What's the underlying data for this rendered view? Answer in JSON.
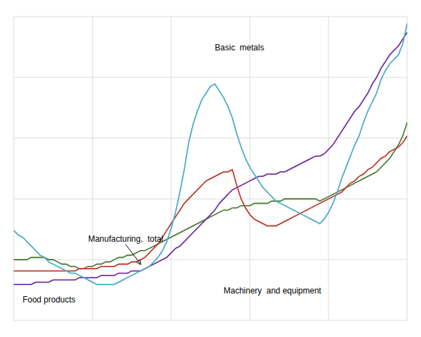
{
  "chart_data": {
    "type": "line",
    "x": [
      0,
      1,
      2,
      3,
      4,
      5,
      6,
      7,
      8,
      9,
      10,
      11,
      12,
      13,
      14,
      15,
      16,
      17,
      18,
      19,
      20,
      21,
      22,
      23,
      24,
      25,
      26,
      27,
      28,
      29,
      30,
      31,
      32,
      33,
      34,
      35,
      36,
      37,
      38,
      39,
      40,
      41,
      42,
      43,
      44,
      45,
      46,
      47,
      48,
      49,
      50,
      51,
      52,
      53,
      54,
      55,
      56,
      57,
      58,
      59,
      60,
      61,
      62,
      63,
      64,
      65,
      66,
      67,
      68,
      69,
      70,
      71,
      72,
      73,
      74,
      75,
      76,
      77,
      78,
      79,
      80,
      81,
      82,
      83,
      84,
      85,
      86,
      87,
      88,
      89,
      90
    ],
    "series": [
      {
        "color": "#4F7F3A",
        "values": [
          102,
          102,
          102,
          102,
          103,
          103,
          103,
          103,
          102,
          102,
          101,
          100,
          100,
          99,
          99,
          98,
          98,
          99,
          99,
          100,
          100,
          101,
          101,
          102,
          103,
          103,
          104,
          104,
          105,
          106,
          106,
          107,
          108,
          109,
          110,
          111,
          112,
          113,
          114,
          115,
          116,
          117,
          118,
          119,
          120,
          121,
          122,
          123,
          124,
          124,
          125,
          125,
          126,
          126,
          126,
          127,
          127,
          127,
          127,
          128,
          128,
          128,
          129,
          129,
          129,
          129,
          129,
          129,
          129,
          129,
          128,
          129,
          130,
          131,
          132,
          133,
          134,
          135,
          136,
          137,
          138,
          139,
          140,
          141,
          143,
          145,
          147,
          150,
          153,
          157,
          163
        ]
      },
      {
        "color": "#7030A0",
        "values": [
          91,
          91,
          91,
          91,
          91,
          92,
          92,
          92,
          92,
          93,
          93,
          93,
          93,
          93,
          93,
          94,
          94,
          94,
          94,
          94,
          95,
          95,
          95,
          95,
          96,
          96,
          96,
          97,
          97,
          97,
          98,
          99,
          100,
          101,
          102,
          103,
          105,
          107,
          108,
          110,
          112,
          114,
          116,
          118,
          120,
          122,
          124,
          127,
          129,
          131,
          133,
          134,
          135,
          136,
          137,
          138,
          139,
          139,
          140,
          140,
          140,
          141,
          141,
          142,
          143,
          144,
          145,
          146,
          147,
          148,
          148,
          149,
          151,
          153,
          156,
          159,
          162,
          165,
          168,
          170,
          173,
          176,
          180,
          183,
          187,
          190,
          193,
          195,
          197,
          200,
          203
        ]
      },
      {
        "color": "#C0392B",
        "values": [
          97,
          97,
          97,
          97,
          97,
          97,
          97,
          97,
          97,
          97,
          97,
          97,
          97,
          97,
          97,
          98,
          98,
          98,
          98,
          98,
          99,
          99,
          99,
          99,
          100,
          100,
          100,
          101,
          101,
          102,
          103,
          105,
          107,
          109,
          112,
          115,
          118,
          121,
          124,
          127,
          129,
          131,
          133,
          135,
          137,
          138,
          139,
          140,
          141,
          141,
          142,
          135,
          129,
          125,
          122,
          120,
          119,
          118,
          117,
          117,
          117,
          118,
          119,
          120,
          121,
          122,
          123,
          124,
          125,
          126,
          127,
          128,
          129,
          130,
          131,
          132,
          134,
          136,
          137,
          139,
          140,
          142,
          143,
          145,
          147,
          148,
          150,
          151,
          152,
          154,
          157
        ]
      },
      {
        "color": "#4BACC6",
        "values": [
          115,
          113,
          112,
          110,
          108,
          106,
          104,
          103,
          101,
          100,
          99,
          98,
          97,
          96,
          96,
          95,
          94,
          93,
          92,
          91,
          91,
          91,
          91,
          91,
          92,
          93,
          94,
          95,
          96,
          97,
          98,
          99,
          101,
          103,
          106,
          110,
          116,
          123,
          132,
          142,
          154,
          162,
          168,
          173,
          176,
          179,
          180,
          177,
          174,
          170,
          165,
          158,
          152,
          147,
          143,
          140,
          137,
          134,
          132,
          130,
          128,
          127,
          126,
          125,
          124,
          123,
          122,
          121,
          120,
          119,
          118,
          120,
          123,
          127,
          132,
          138,
          143,
          148,
          153,
          157,
          163,
          168,
          172,
          176,
          182,
          186,
          189,
          191,
          193,
          198,
          207
        ]
      }
    ],
    "xlim": [
      0,
      90
    ],
    "xticks": [
      0,
      18,
      36,
      54,
      72,
      90
    ],
    "ylim": [
      75,
      210
    ],
    "yticks": [
      75,
      102,
      129,
      156,
      183,
      210
    ],
    "grid": true,
    "tick_labels": false,
    "annotations": [
      {
        "text": "Basic  metals",
        "x": 46,
        "y": 195
      },
      {
        "text": "Manufacturing,  total",
        "x": 17,
        "y": 110,
        "arrow_to": {
          "x": 29,
          "y": 100
        }
      },
      {
        "text": "Food products",
        "x": 2,
        "y": 83
      },
      {
        "text": "Machinery  and equipment",
        "x": 48,
        "y": 87
      }
    ]
  }
}
